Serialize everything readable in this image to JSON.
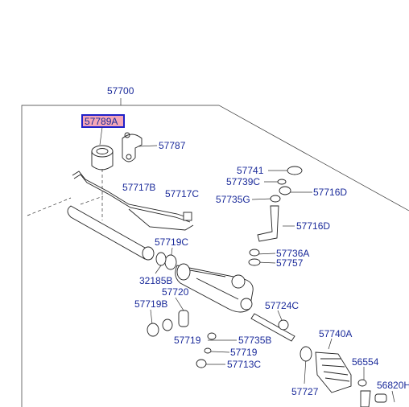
{
  "diagram": {
    "assembly_label": "57700",
    "highlighted_part": "57789A",
    "parts": [
      {
        "id": "57787",
        "label": "57787"
      },
      {
        "id": "57741",
        "label": "57741"
      },
      {
        "id": "57739C",
        "label": "57739C"
      },
      {
        "id": "57716D_top",
        "label": "57716D"
      },
      {
        "id": "57717B",
        "label": "57717B"
      },
      {
        "id": "57717C",
        "label": "57717C"
      },
      {
        "id": "57735G",
        "label": "57735G"
      },
      {
        "id": "57716D_mid",
        "label": "57716D"
      },
      {
        "id": "57719C",
        "label": "57719C"
      },
      {
        "id": "57736A",
        "label": "57736A"
      },
      {
        "id": "57757",
        "label": "57757"
      },
      {
        "id": "32185B",
        "label": "32185B"
      },
      {
        "id": "57720",
        "label": "57720"
      },
      {
        "id": "57719B",
        "label": "57719B"
      },
      {
        "id": "57724C",
        "label": "57724C"
      },
      {
        "id": "57740A",
        "label": "57740A"
      },
      {
        "id": "57719_a",
        "label": "57719"
      },
      {
        "id": "57735B",
        "label": "57735B"
      },
      {
        "id": "57719_b",
        "label": "57719"
      },
      {
        "id": "56554",
        "label": "56554"
      },
      {
        "id": "57713C",
        "label": "57713C"
      },
      {
        "id": "57727",
        "label": "57727"
      },
      {
        "id": "56820H",
        "label": "56820H"
      }
    ]
  }
}
